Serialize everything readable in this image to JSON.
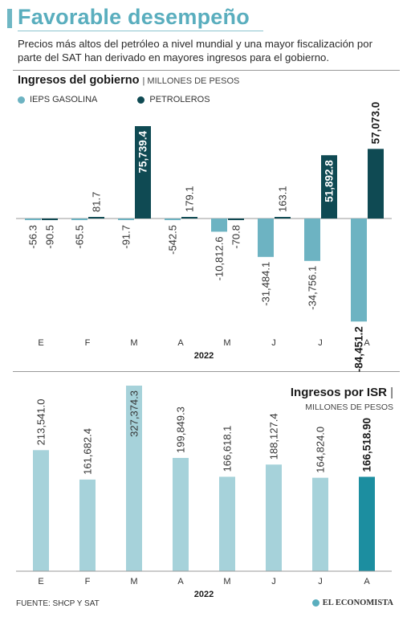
{
  "title": "Favorable desempeño",
  "subtitle": "Precios más altos del petróleo a nivel mundial y una mayor fiscalización por parte del SAT han derivado en mayores ingresos para el gobierno.",
  "footer": {
    "source": "FUENTE: SHCP Y SAT",
    "brand": "EL ECONOMISTA"
  },
  "colors": {
    "ieps": "#6db3c2",
    "petroleros": "#0f4a53",
    "isr": "#a6d2da",
    "isr_highlight": "#1c8ea0",
    "title": "#5aaebe"
  },
  "chart_data": [
    {
      "type": "bar",
      "title": "Ingresos del gobierno",
      "unit": "MILLONES DE PESOS",
      "xlabel": "2022",
      "categories": [
        "E",
        "F",
        "M",
        "A",
        "M",
        "J",
        "J",
        "A"
      ],
      "value_labels": {
        "ieps": [
          "-56.3",
          "-65.5",
          "-91.7",
          "-542.5",
          "-10,812.6",
          "-31,484.1",
          "-34,756.1",
          "-84,451.2"
        ],
        "petroleros": [
          "-90.5",
          "81.7",
          "75,739.4",
          "179.1",
          "-70.8",
          "163.1",
          "51,892.8",
          "57,073.0"
        ]
      },
      "series": [
        {
          "name": "IEPS GASOLINA",
          "values": [
            -56.3,
            -65.5,
            -91.7,
            -542.5,
            -10812.6,
            -31484.1,
            -34756.1,
            -84451.2
          ]
        },
        {
          "name": "PETROLEROS",
          "values": [
            -90.5,
            81.7,
            75739.4,
            179.1,
            -70.8,
            163.1,
            51892.8,
            57073.0
          ]
        }
      ],
      "highlight_labels": {
        "ieps": [
          7
        ],
        "petroleros": [
          2,
          6,
          7
        ]
      }
    },
    {
      "type": "bar",
      "title": "Ingresos por ISR",
      "unit": "MILLONES DE PESOS",
      "xlabel": "2022",
      "categories": [
        "E",
        "F",
        "M",
        "A",
        "M",
        "J",
        "J",
        "A"
      ],
      "value_labels": [
        "213,541.0",
        "161,682.4",
        "327,374.3",
        "199,849.3",
        "166,618.1",
        "188,127.4",
        "164,824.0",
        "166,518.90"
      ],
      "values": [
        213541.0,
        161682.4,
        327374.3,
        199849.3,
        166618.1,
        188127.4,
        164824.0,
        166518.9
      ],
      "highlight_index": 7
    }
  ]
}
